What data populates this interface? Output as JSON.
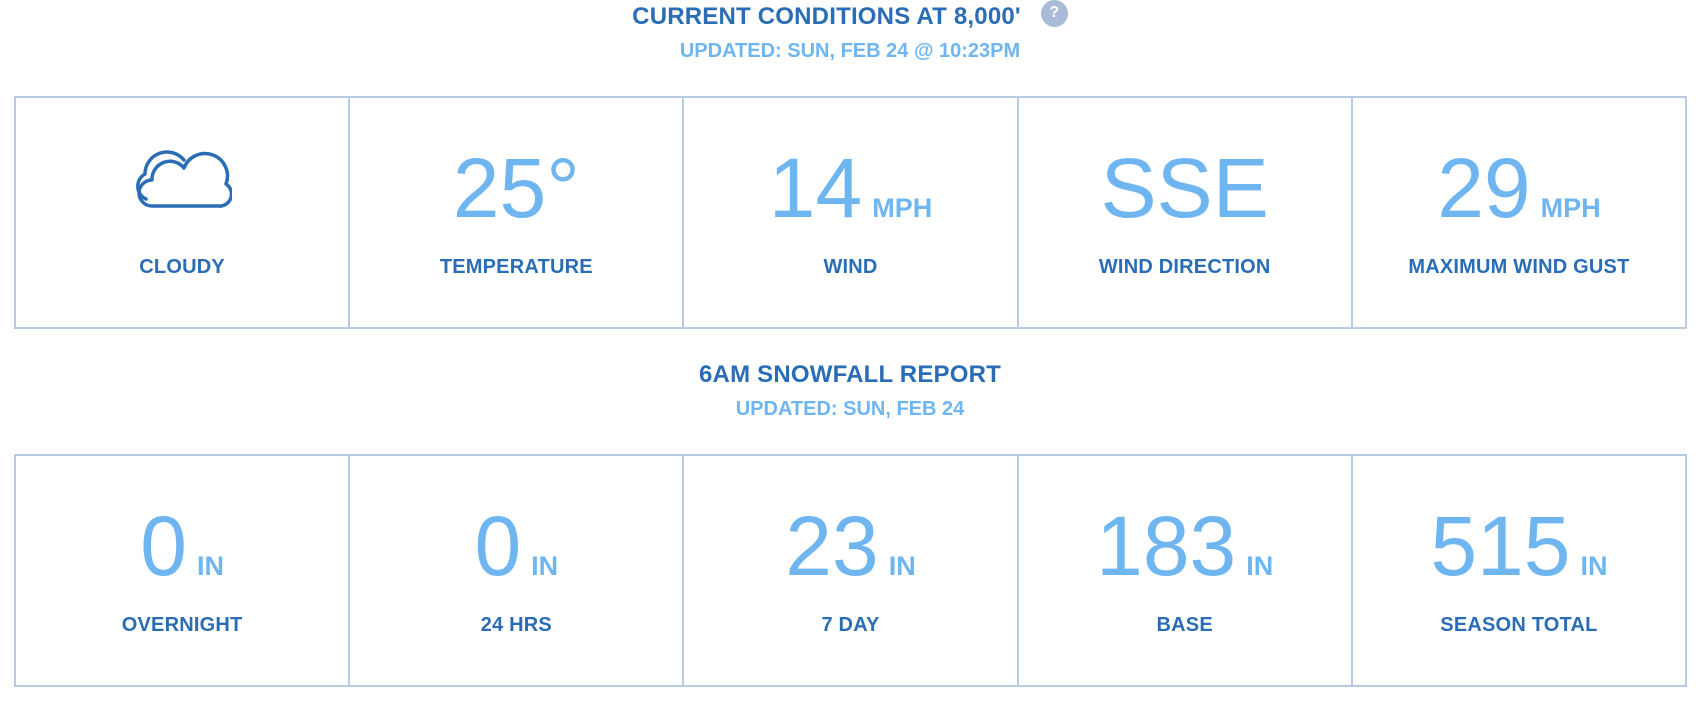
{
  "conditions": {
    "title": "CURRENT CONDITIONS AT 8,000'",
    "help_glyph": "?",
    "updated": "UPDATED: SUN, FEB 24 @ 10:23PM",
    "icon": "cloud-icon",
    "sky": "CLOUDY",
    "temperature": {
      "value": "25°",
      "label": "TEMPERATURE"
    },
    "wind": {
      "value": "14",
      "unit": "MPH",
      "label": "WIND"
    },
    "wind_direction": {
      "value": "SSE",
      "label": "WIND DIRECTION"
    },
    "max_gust": {
      "value": "29",
      "unit": "MPH",
      "label": "MAXIMUM WIND GUST"
    }
  },
  "snowfall": {
    "title": "6AM SNOWFALL REPORT",
    "updated": "UPDATED: SUN, FEB 24",
    "items": [
      {
        "value": "0",
        "unit": "IN",
        "label": "OVERNIGHT"
      },
      {
        "value": "0",
        "unit": "IN",
        "label": "24 HRS"
      },
      {
        "value": "23",
        "unit": "IN",
        "label": "7 DAY"
      },
      {
        "value": "183",
        "unit": "IN",
        "label": "BASE"
      },
      {
        "value": "515",
        "unit": "IN",
        "label": "SEASON TOTAL"
      }
    ]
  },
  "colors": {
    "heading": "#2a6db5",
    "value": "#6fb6f1",
    "border": "#b9cbe3",
    "help_badge": "#a9bbd6"
  }
}
